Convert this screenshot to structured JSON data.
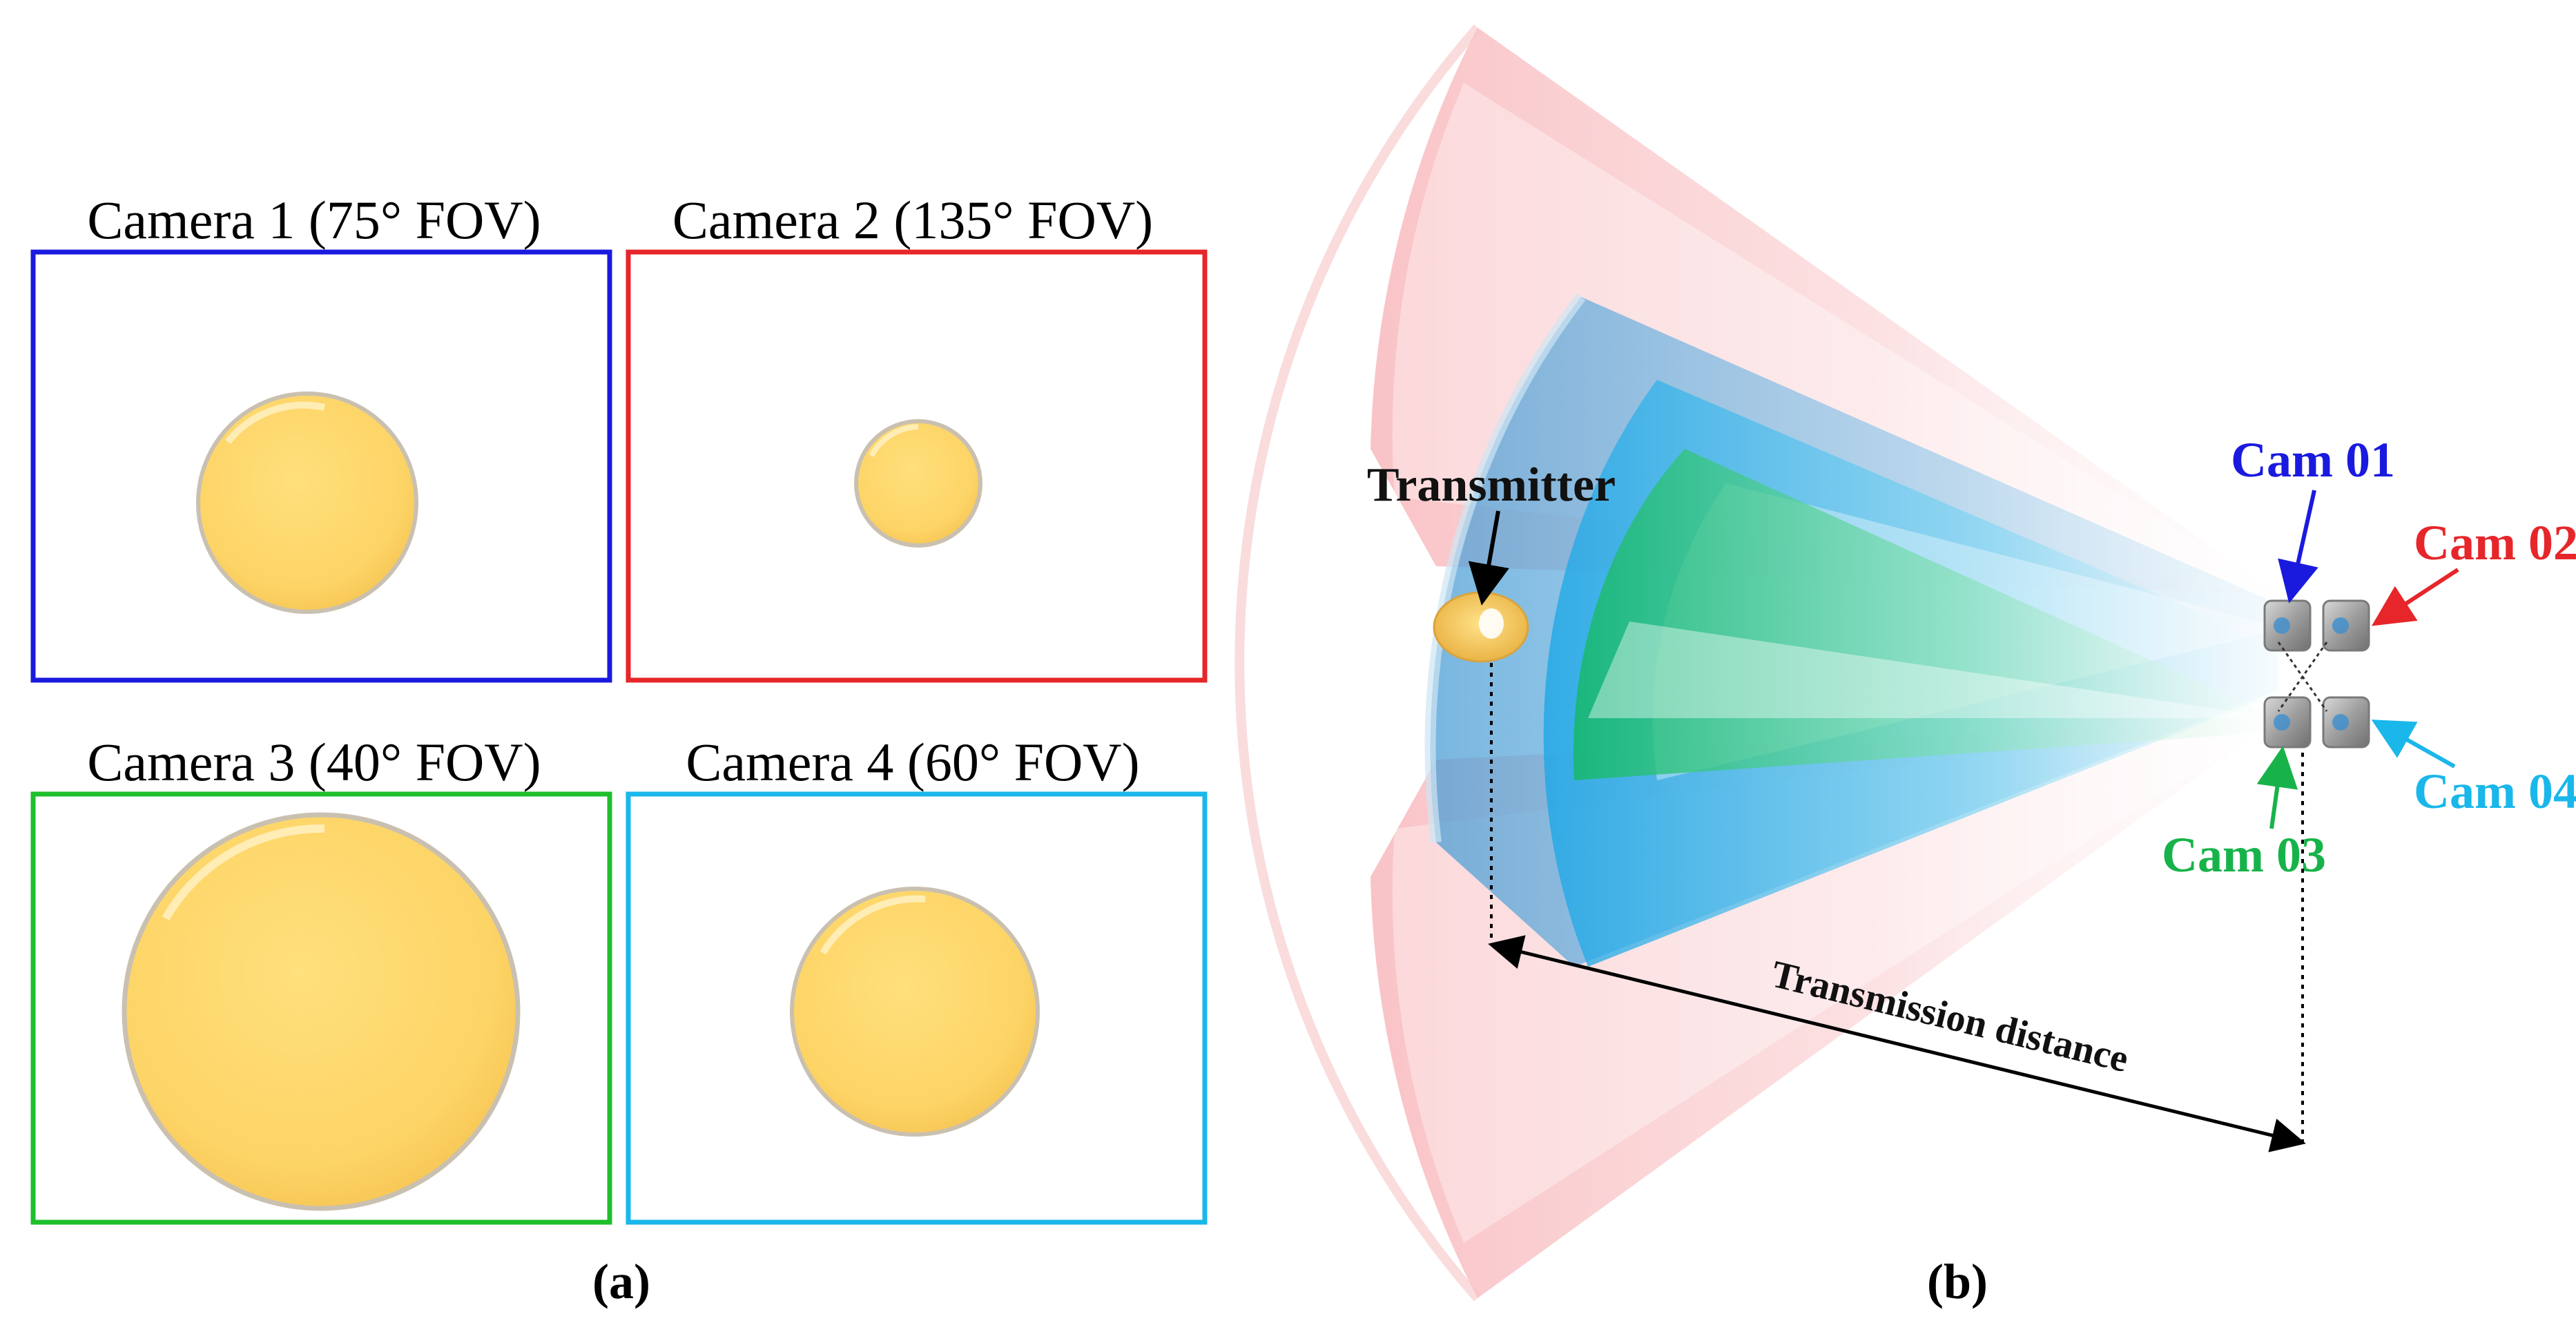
{
  "panel_a": {
    "cameras": [
      {
        "title": "Camera 1 (75° FOV)",
        "color": "#1a1adf",
        "spot_size": 0.52
      },
      {
        "title": "Camera 2 (135° FOV)",
        "color": "#e6262a",
        "spot_size": 0.3
      },
      {
        "title": "Camera 3 (40° FOV)",
        "color": "#1fbf2c",
        "spot_size": 1.0
      },
      {
        "title": "Camera 4 (60° FOV)",
        "color": "#1ab7ea",
        "spot_size": 0.62
      }
    ],
    "spot_color": "#fdd668",
    "caption": "(a)"
  },
  "panel_b": {
    "transmitter_label": "Transmitter",
    "cam_labels": {
      "cam01": {
        "text": "Cam 01",
        "color": "#1a1adf"
      },
      "cam02": {
        "text": "Cam 02",
        "color": "#e6262a"
      },
      "cam03": {
        "text": "Cam 03",
        "color": "#17b34a"
      },
      "cam04": {
        "text": "Cam 04",
        "color": "#1ab7ea"
      }
    },
    "distance_label": "Transmission distance",
    "cone_colors": {
      "wide": "#f6a9ad",
      "mid": "#5aa7d9",
      "inner": "#7fd8f2",
      "narrow": "#27c07e"
    },
    "caption": "(b)"
  }
}
